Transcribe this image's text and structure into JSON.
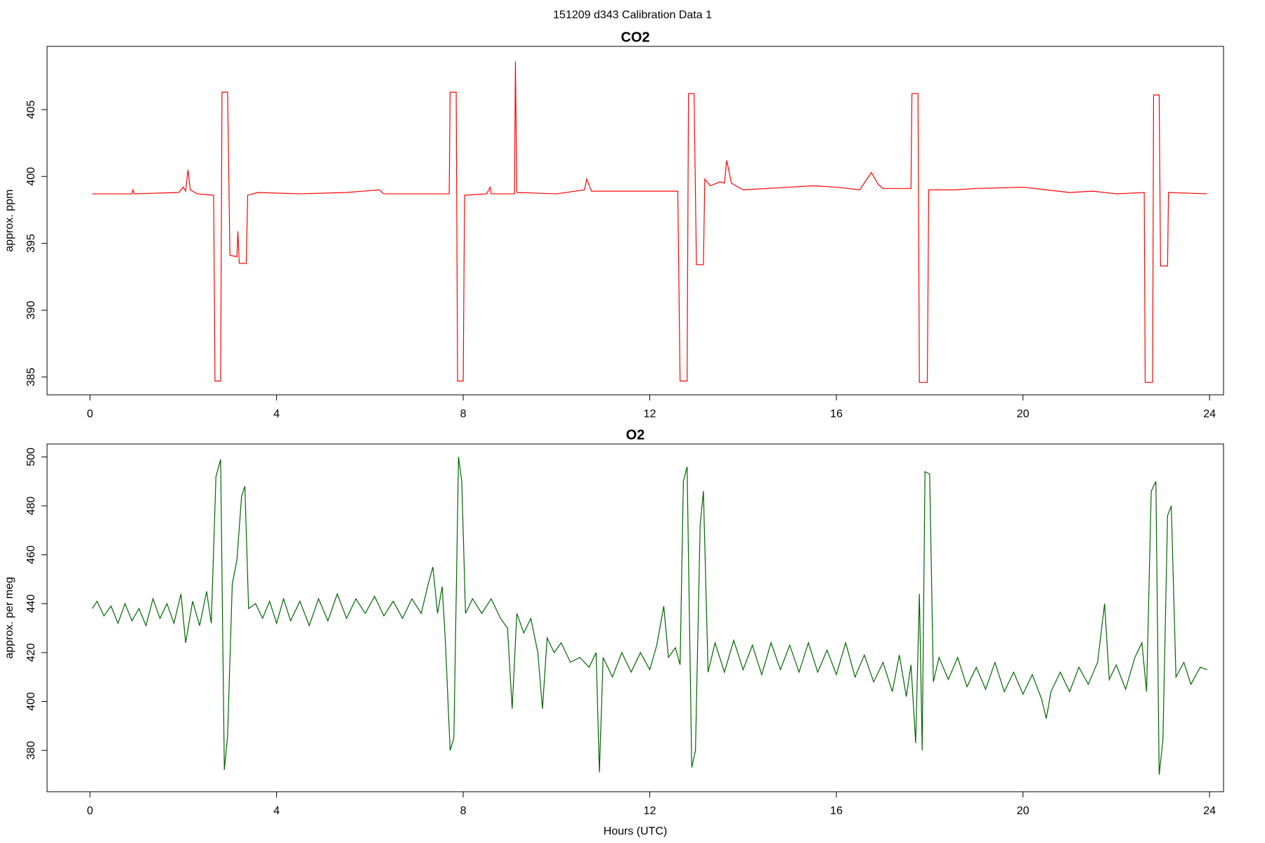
{
  "title": "151209   d343   Calibration Data 1",
  "chart_data": [
    {
      "type": "line",
      "title": "CO2",
      "y_label": "approx. ppm",
      "color": "#ff0000",
      "xlim": [
        -0.92,
        24.3
      ],
      "xticks": [
        0,
        4,
        8,
        12,
        16,
        20,
        24
      ],
      "ylim": [
        383.67,
        409.73
      ],
      "yticks": [
        385,
        390,
        395,
        400,
        405
      ],
      "x": [
        0.05,
        0.9,
        0.92,
        0.95,
        1.9,
        2.0,
        2.05,
        2.1,
        2.15,
        2.3,
        2.65,
        2.68,
        2.8,
        2.83,
        2.95,
        3.0,
        3.15,
        3.17,
        3.2,
        3.35,
        3.38,
        3.6,
        4.5,
        5.5,
        6.2,
        6.3,
        7.7,
        7.72,
        7.85,
        7.88,
        8.0,
        8.03,
        8.5,
        8.58,
        8.6,
        9.1,
        9.12,
        9.15,
        10.0,
        10.6,
        10.65,
        10.75,
        11.5,
        12.6,
        12.65,
        12.8,
        12.83,
        12.95,
        13.0,
        13.15,
        13.18,
        13.3,
        13.5,
        13.6,
        13.65,
        13.75,
        14.0,
        15.0,
        15.5,
        16.0,
        16.5,
        16.75,
        16.9,
        17.0,
        17.6,
        17.62,
        17.75,
        17.78,
        17.95,
        17.98,
        18.5,
        19.0,
        20.0,
        20.5,
        21.0,
        21.5,
        22.0,
        22.6,
        22.62,
        22.78,
        22.8,
        22.92,
        22.95,
        23.1,
        23.12,
        23.95
      ],
      "values": [
        398.7,
        398.7,
        399.0,
        398.7,
        398.8,
        399.2,
        398.9,
        400.5,
        399.0,
        398.7,
        398.6,
        384.7,
        384.7,
        406.3,
        406.3,
        394.1,
        394.0,
        395.9,
        393.5,
        393.5,
        398.6,
        398.8,
        398.7,
        398.8,
        399.0,
        398.7,
        398.7,
        406.3,
        406.3,
        384.7,
        384.7,
        398.6,
        398.7,
        399.2,
        398.7,
        398.7,
        408.6,
        398.8,
        398.7,
        399.0,
        399.8,
        398.9,
        398.9,
        398.9,
        384.7,
        384.7,
        406.2,
        406.2,
        393.4,
        393.4,
        399.8,
        399.3,
        399.6,
        399.5,
        401.2,
        399.5,
        399.0,
        399.2,
        399.3,
        399.2,
        399.0,
        400.3,
        399.4,
        399.1,
        399.1,
        406.2,
        406.2,
        384.6,
        384.6,
        399.0,
        399.0,
        399.1,
        399.2,
        399.0,
        398.8,
        398.9,
        398.7,
        398.8,
        384.6,
        384.6,
        406.1,
        406.1,
        393.3,
        393.3,
        398.8,
        398.7
      ]
    },
    {
      "type": "line",
      "title": "O2",
      "y_label": "approx. per meg",
      "x_label": "Hours (UTC)",
      "color": "#006400",
      "xlim": [
        -0.92,
        24.3
      ],
      "xticks": [
        0,
        4,
        8,
        12,
        16,
        20,
        24
      ],
      "ylim": [
        363.1,
        505.3
      ],
      "yticks": [
        380,
        400,
        420,
        440,
        460,
        480,
        500
      ],
      "x": [
        0.05,
        0.15,
        0.3,
        0.45,
        0.6,
        0.75,
        0.9,
        1.05,
        1.2,
        1.35,
        1.5,
        1.65,
        1.8,
        1.95,
        2.05,
        2.2,
        2.35,
        2.5,
        2.6,
        2.7,
        2.8,
        2.88,
        2.95,
        3.05,
        3.15,
        3.25,
        3.32,
        3.4,
        3.55,
        3.7,
        3.85,
        4.0,
        4.15,
        4.3,
        4.5,
        4.7,
        4.9,
        5.1,
        5.3,
        5.5,
        5.7,
        5.9,
        6.1,
        6.3,
        6.5,
        6.7,
        6.9,
        7.1,
        7.25,
        7.35,
        7.45,
        7.55,
        7.62,
        7.72,
        7.8,
        7.9,
        7.97,
        8.05,
        8.2,
        8.4,
        8.6,
        8.8,
        8.95,
        9.05,
        9.15,
        9.3,
        9.45,
        9.6,
        9.7,
        9.8,
        9.95,
        10.1,
        10.3,
        10.5,
        10.7,
        10.85,
        10.92,
        11.0,
        11.2,
        11.4,
        11.6,
        11.8,
        12.0,
        12.15,
        12.3,
        12.4,
        12.55,
        12.65,
        12.72,
        12.8,
        12.9,
        12.98,
        13.08,
        13.15,
        13.25,
        13.4,
        13.6,
        13.8,
        14.0,
        14.2,
        14.4,
        14.6,
        14.8,
        15.0,
        15.2,
        15.4,
        15.6,
        15.8,
        16.0,
        16.2,
        16.4,
        16.6,
        16.8,
        17.0,
        17.2,
        17.35,
        17.5,
        17.6,
        17.7,
        17.78,
        17.84,
        17.9,
        18.0,
        18.08,
        18.2,
        18.4,
        18.6,
        18.8,
        19.0,
        19.2,
        19.4,
        19.6,
        19.8,
        20.0,
        20.2,
        20.4,
        20.5,
        20.6,
        20.8,
        21.0,
        21.2,
        21.4,
        21.6,
        21.75,
        21.85,
        22.0,
        22.2,
        22.4,
        22.55,
        22.65,
        22.75,
        22.85,
        22.92,
        23.0,
        23.1,
        23.18,
        23.28,
        23.45,
        23.6,
        23.8,
        23.95
      ],
      "values": [
        438,
        441,
        435,
        439,
        432,
        440,
        433,
        438,
        431,
        442,
        434,
        440,
        432,
        444,
        424,
        441,
        431,
        445,
        432,
        492,
        499,
        372,
        386,
        448,
        458,
        484,
        488,
        438,
        440,
        434,
        441,
        432,
        442,
        433,
        441,
        431,
        442,
        433,
        444,
        434,
        442,
        436,
        443,
        435,
        441,
        434,
        442,
        436,
        448,
        455,
        436,
        447,
        424,
        380,
        385,
        500,
        490,
        436,
        442,
        436,
        442,
        434,
        430,
        397,
        436,
        428,
        434,
        420,
        397,
        426,
        420,
        424,
        416,
        418,
        414,
        420,
        371,
        418,
        410,
        420,
        412,
        420,
        413,
        423,
        439,
        418,
        422,
        415,
        490,
        496,
        373,
        380,
        472,
        486,
        412,
        424,
        412,
        425,
        413,
        423,
        411,
        424,
        413,
        423,
        412,
        424,
        412,
        421,
        411,
        424,
        410,
        419,
        408,
        416,
        404,
        419,
        402,
        415,
        383,
        444,
        380,
        494,
        493,
        408,
        418,
        409,
        418,
        406,
        414,
        405,
        416,
        404,
        412,
        403,
        411,
        401,
        393,
        404,
        412,
        404,
        414,
        407,
        416,
        440,
        409,
        415,
        405,
        418,
        424,
        404,
        486,
        490,
        370,
        384,
        476,
        480,
        410,
        416,
        407,
        414,
        413
      ]
    }
  ]
}
